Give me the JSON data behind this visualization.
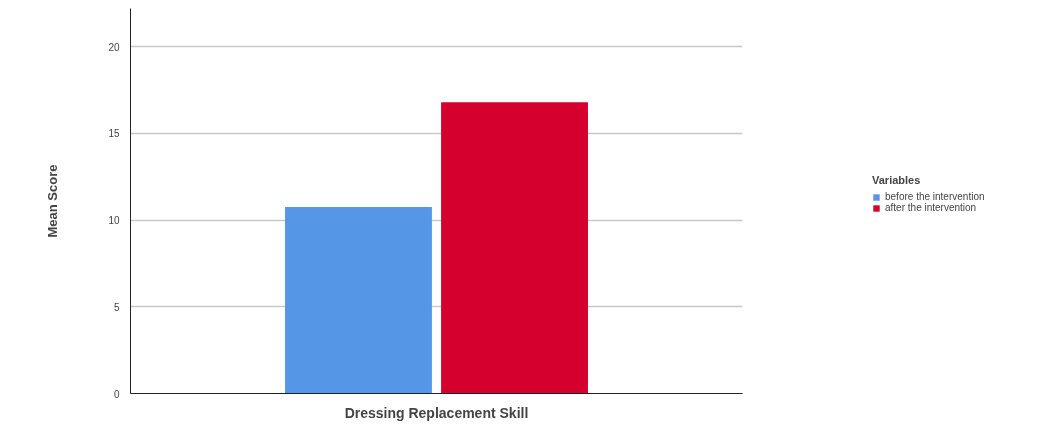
{
  "chart_data": {
    "type": "bar",
    "categories": [
      "Dressing Replacement Skill"
    ],
    "series": [
      {
        "name": "before the intervention",
        "color": "#5596e6",
        "values": [
          10.75
        ]
      },
      {
        "name": "after the intervention",
        "color": "#d5002e",
        "values": [
          16.8
        ]
      }
    ],
    "ylabel": "Mean Score",
    "legend_title": "Variables",
    "ylim": [
      0,
      22.2
    ],
    "yticks": [
      0,
      5,
      10,
      15,
      20
    ],
    "grid": "y",
    "legend": "right"
  }
}
